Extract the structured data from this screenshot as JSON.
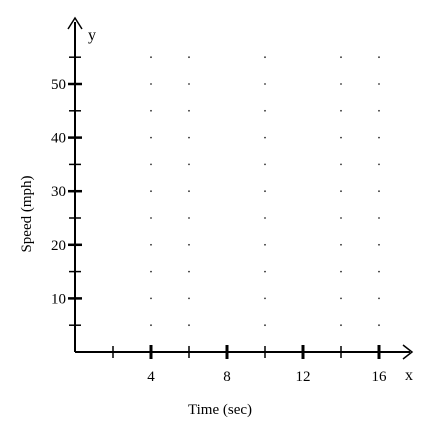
{
  "chart_data": {
    "type": "scatter",
    "title": "",
    "xlabel": "Time (sec)",
    "ylabel": "Speed (mph)",
    "x_axis_name": "x",
    "y_axis_name": "y",
    "xlim": [
      0,
      18
    ],
    "ylim": [
      0,
      60
    ],
    "x_major_ticks": [
      4,
      8,
      12,
      16
    ],
    "x_minor_ticks": [
      2,
      6,
      10,
      14
    ],
    "x_tick_labels": [
      "4",
      "8",
      "12",
      "16"
    ],
    "y_major_ticks": [
      10,
      20,
      30,
      40,
      50
    ],
    "y_minor_ticks": [
      5,
      15,
      25,
      35,
      45,
      55
    ],
    "y_tick_labels": [
      "10",
      "20",
      "30",
      "40",
      "50"
    ],
    "grid": "dotted",
    "grid_x": [
      4,
      6,
      10,
      14,
      16
    ],
    "grid_y": [
      5,
      10,
      15,
      20,
      25,
      30,
      35,
      40,
      45,
      50,
      55
    ],
    "series": []
  }
}
